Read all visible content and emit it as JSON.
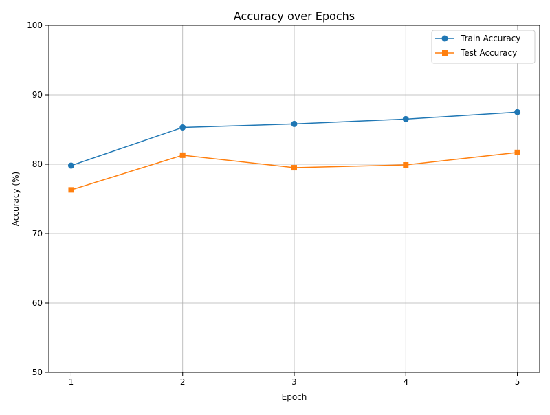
{
  "chart_data": {
    "type": "line",
    "title": "Accuracy over Epochs",
    "xlabel": "Epoch",
    "ylabel": "Accuracy (%)",
    "x": [
      1,
      2,
      3,
      4,
      5
    ],
    "xticks": [
      "1",
      "2",
      "3",
      "4",
      "5"
    ],
    "xlim": [
      0.8,
      5.2
    ],
    "ylim": [
      50,
      100
    ],
    "yticks": [
      "50",
      "60",
      "70",
      "80",
      "90",
      "100"
    ],
    "grid": true,
    "legend_position": "top-right",
    "series": [
      {
        "name": "Train Accuracy",
        "values": [
          79.8,
          85.3,
          85.8,
          86.5,
          87.5
        ],
        "color": "#1f77b4",
        "marker": "circle"
      },
      {
        "name": "Test Accuracy",
        "values": [
          76.3,
          81.3,
          79.5,
          79.9,
          81.7
        ],
        "color": "#ff7f0e",
        "marker": "square"
      }
    ]
  }
}
